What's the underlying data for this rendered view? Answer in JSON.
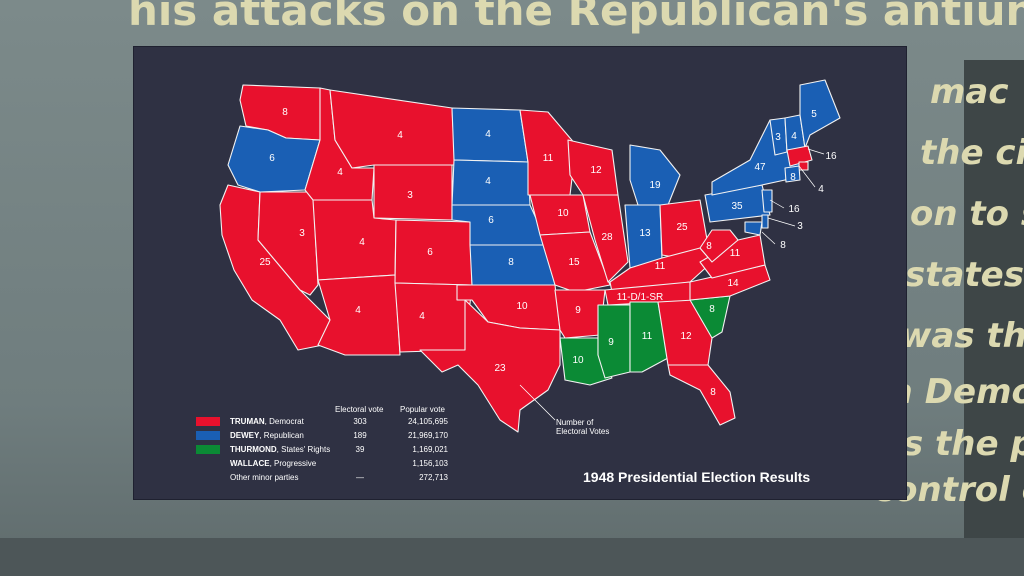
{
  "headline": "his attacks on the Republican's antiunio",
  "side_text": [
    "mac",
    "the ci",
    "on to s",
    "states.",
    "was th",
    "a Demo",
    "as the p",
    "control c"
  ],
  "map": {
    "title": "1948 Presidential Election Results",
    "annotation": [
      "Number of",
      "Electoral Votes"
    ],
    "colors": {
      "truman": "#e8112d",
      "dewey": "#1a5fb4",
      "thurmond": "#0b8a35",
      "panel": "#2f3143"
    },
    "legend": {
      "col_electoral": "Electoral vote",
      "col_popular": "Popular vote",
      "rows": [
        {
          "name": "TRUMAN",
          "party": ", Democrat",
          "electoral": "303",
          "popular": "24,105,695",
          "swatch": "truman"
        },
        {
          "name": "DEWEY",
          "party": ", Republican",
          "electoral": "189",
          "popular": "21,969,170",
          "swatch": "dewey"
        },
        {
          "name": "THURMOND",
          "party": ", States' Rights",
          "electoral": "39",
          "popular": "1,169,021",
          "swatch": "thurmond"
        },
        {
          "name": "WALLACE",
          "party": ", Progressive",
          "electoral": "",
          "popular": "1,156,103",
          "swatch": ""
        },
        {
          "name": "",
          "party": "Other minor parties",
          "electoral": "—",
          "popular": "272,713",
          "swatch": ""
        }
      ]
    },
    "states": [
      {
        "name": "WA",
        "party": "truman",
        "ev": "8"
      },
      {
        "name": "OR",
        "party": "dewey",
        "ev": "6"
      },
      {
        "name": "CA",
        "party": "truman",
        "ev": "25"
      },
      {
        "name": "NV",
        "party": "truman",
        "ev": "3"
      },
      {
        "name": "ID",
        "party": "truman",
        "ev": "4"
      },
      {
        "name": "MT",
        "party": "truman",
        "ev": "4"
      },
      {
        "name": "WY",
        "party": "truman",
        "ev": "3"
      },
      {
        "name": "UT",
        "party": "truman",
        "ev": "4"
      },
      {
        "name": "AZ",
        "party": "truman",
        "ev": "4"
      },
      {
        "name": "CO",
        "party": "truman",
        "ev": "6"
      },
      {
        "name": "NM",
        "party": "truman",
        "ev": "4"
      },
      {
        "name": "ND",
        "party": "dewey",
        "ev": "4"
      },
      {
        "name": "SD",
        "party": "dewey",
        "ev": "4"
      },
      {
        "name": "NE",
        "party": "dewey",
        "ev": "6"
      },
      {
        "name": "KS",
        "party": "dewey",
        "ev": "8"
      },
      {
        "name": "OK",
        "party": "truman",
        "ev": "10"
      },
      {
        "name": "TX",
        "party": "truman",
        "ev": "23"
      },
      {
        "name": "MN",
        "party": "truman",
        "ev": "11"
      },
      {
        "name": "IA",
        "party": "truman",
        "ev": "10"
      },
      {
        "name": "MO",
        "party": "truman",
        "ev": "15"
      },
      {
        "name": "AR",
        "party": "truman",
        "ev": "9"
      },
      {
        "name": "LA",
        "party": "thurmond",
        "ev": "10"
      },
      {
        "name": "WI",
        "party": "truman",
        "ev": "12"
      },
      {
        "name": "IL",
        "party": "truman",
        "ev": "28"
      },
      {
        "name": "MI",
        "party": "dewey",
        "ev": "19"
      },
      {
        "name": "IN",
        "party": "dewey",
        "ev": "13"
      },
      {
        "name": "OH",
        "party": "truman",
        "ev": "25"
      },
      {
        "name": "KY",
        "party": "truman",
        "ev": "11"
      },
      {
        "name": "TN",
        "party": "truman",
        "ev": "11-D/1-SR"
      },
      {
        "name": "MS",
        "party": "thurmond",
        "ev": "9"
      },
      {
        "name": "AL",
        "party": "thurmond",
        "ev": "11"
      },
      {
        "name": "GA",
        "party": "truman",
        "ev": "12"
      },
      {
        "name": "FL",
        "party": "truman",
        "ev": "8"
      },
      {
        "name": "SC",
        "party": "thurmond",
        "ev": "8"
      },
      {
        "name": "NC",
        "party": "truman",
        "ev": "14"
      },
      {
        "name": "VA",
        "party": "truman",
        "ev": "11"
      },
      {
        "name": "WV",
        "party": "truman",
        "ev": "8"
      },
      {
        "name": "PA",
        "party": "dewey",
        "ev": "35"
      },
      {
        "name": "NY",
        "party": "dewey",
        "ev": "47"
      },
      {
        "name": "VT",
        "party": "dewey",
        "ev": "3"
      },
      {
        "name": "NH",
        "party": "dewey",
        "ev": "4"
      },
      {
        "name": "ME",
        "party": "dewey",
        "ev": "5"
      },
      {
        "name": "MA",
        "party": "truman",
        "ev": "16"
      },
      {
        "name": "RI",
        "party": "truman",
        "ev": "4"
      },
      {
        "name": "CT",
        "party": "dewey",
        "ev": "8"
      },
      {
        "name": "NJ",
        "party": "dewey",
        "ev": "16"
      },
      {
        "name": "DE",
        "party": "dewey",
        "ev": "3"
      },
      {
        "name": "MD",
        "party": "dewey",
        "ev": "8"
      }
    ]
  }
}
